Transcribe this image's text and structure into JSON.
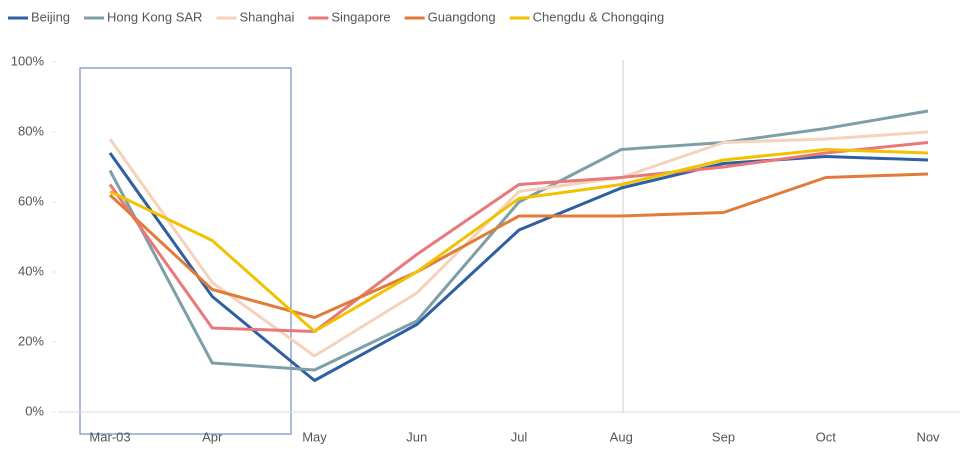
{
  "chart_data": {
    "type": "line",
    "categories": [
      "Mar-03",
      "Apr",
      "May",
      "Jun",
      "Jul",
      "Aug",
      "Sep",
      "Oct",
      "Nov"
    ],
    "series": [
      {
        "name": "Beijing",
        "color": "#2e5fa3",
        "values": [
          74,
          33,
          9,
          25,
          52,
          64,
          71,
          73,
          72
        ]
      },
      {
        "name": "Hong Kong SAR",
        "color": "#7f9fa8",
        "values": [
          69,
          14,
          12,
          26,
          60,
          75,
          77,
          81,
          86
        ]
      },
      {
        "name": "Shanghai",
        "color": "#f5d2bc",
        "values": [
          78,
          37,
          16,
          34,
          63,
          67,
          77,
          78,
          80
        ]
      },
      {
        "name": "Singapore",
        "color": "#e8787a",
        "values": [
          65,
          24,
          23,
          45,
          65,
          67,
          70,
          74,
          77
        ]
      },
      {
        "name": "Guangdong",
        "color": "#e07b39",
        "values": [
          62,
          35,
          27,
          40,
          56,
          56,
          57,
          67,
          68
        ]
      },
      {
        "name": "Chengdu & Chongqing",
        "color": "#f2c200",
        "values": [
          63,
          49,
          23,
          40,
          61,
          65,
          72,
          75,
          74
        ]
      }
    ],
    "ylim": [
      0,
      100
    ],
    "yticks": [
      {
        "value": 0,
        "label": "0%"
      },
      {
        "value": 20,
        "label": "20%"
      },
      {
        "value": 40,
        "label": "40%"
      },
      {
        "value": 60,
        "label": "60%"
      },
      {
        "value": 80,
        "label": "80%"
      },
      {
        "value": 100,
        "label": "100%"
      }
    ],
    "grid": false,
    "legend": "top"
  }
}
